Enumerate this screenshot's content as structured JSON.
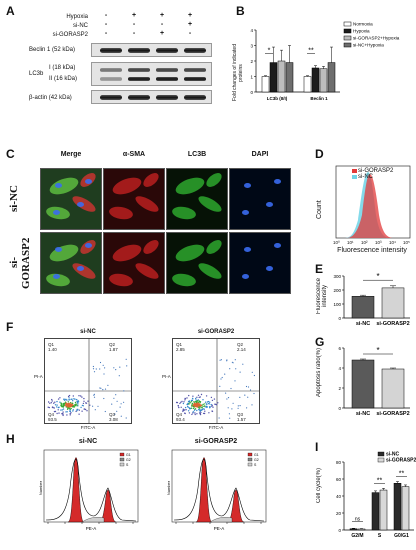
{
  "panels": {
    "A": "A",
    "B": "B",
    "C": "C",
    "D": "D",
    "E": "E",
    "F": "F",
    "G": "G",
    "H": "H",
    "I": "I"
  },
  "panelA": {
    "row_labels": [
      "Hypoxia",
      "si-NC",
      "si-GORASP2"
    ],
    "signs": [
      [
        "-",
        "+",
        "+",
        "+"
      ],
      [
        "-",
        "-",
        "-",
        "+"
      ],
      [
        "-",
        "-",
        "+",
        "-"
      ]
    ],
    "blots": [
      "Beclin 1 (52 kDa)",
      "LC3b",
      "I (18 kDa)",
      "II (16 kDa)",
      "β-actin (42 kDa)"
    ]
  },
  "panelB": {
    "ylabel": "Fold changes of indicated proteins",
    "legend": [
      "Normoxia",
      "Hypoxia",
      "si-GORASP2+Hypoxia",
      "si-NC+Hypoxia"
    ],
    "colors": [
      "#ffffff",
      "#1c1c1c",
      "#bdbdbd",
      "#6e6e6e"
    ],
    "chart_data": {
      "type": "bar",
      "categories": [
        "LC3b (II/I)",
        "Beclin 1"
      ],
      "series": [
        {
          "name": "Normoxia",
          "values": [
            1.0,
            1.0
          ]
        },
        {
          "name": "Hypoxia",
          "values": [
            1.9,
            1.55
          ]
        },
        {
          "name": "si-GORASP2+Hypoxia",
          "values": [
            2.0,
            1.5
          ]
        },
        {
          "name": "si-NC+Hypoxia",
          "values": [
            1.9,
            1.9
          ]
        }
      ],
      "errors": [
        [
          0.05,
          0.05
        ],
        [
          1.0,
          0.15
        ],
        [
          0.7,
          0.15
        ],
        [
          1.1,
          1.0
        ]
      ],
      "ylim": [
        0,
        4
      ],
      "yticks": [
        "0",
        "1",
        "2",
        "3",
        "4"
      ],
      "sig": [
        "*",
        "**"
      ]
    }
  },
  "panelC": {
    "col_labels": [
      "Merge",
      "α-SMA",
      "LC3B",
      "DAPI"
    ],
    "col_colors": [
      "#2b6cc4",
      "#d22",
      "#2a2",
      "#2b6cc4"
    ],
    "row_labels": [
      "si-NC",
      "si-GORASP2"
    ]
  },
  "panelD": {
    "legend": [
      "si-GORASP2",
      "si-NC"
    ],
    "colors": [
      "#e23a3a",
      "#6fd3e6"
    ],
    "ylabel": "Count",
    "xlabel": "Fluorescence intensity",
    "xticks": [
      "10⁰",
      "10¹",
      "10²",
      "10³",
      "10⁴",
      "10⁵"
    ]
  },
  "panelE": {
    "ylabel": "Fluorescence intensity",
    "chart_data": {
      "type": "bar",
      "categories": [
        "si-NC",
        "si-GORASP2"
      ],
      "values": [
        155,
        215
      ],
      "errors": [
        8,
        15
      ],
      "ylim": [
        0,
        300
      ],
      "yticks": [
        "0",
        "100",
        "200",
        "300"
      ],
      "sig": "*"
    }
  },
  "panelF": {
    "plots": [
      {
        "title": "si-NC",
        "quadrants": [
          "Q1",
          "Q2",
          "Q4",
          "Q3"
        ],
        "values": [
          "1.40",
          "1.87",
          "93.5",
          "3.08"
        ]
      },
      {
        "title": "si-GORASP2",
        "quadrants": [
          "Q1",
          "Q2",
          "Q4",
          "Q3"
        ],
        "values": [
          "2.85",
          "2.14",
          "93.4",
          "1.57"
        ]
      }
    ],
    "xlabel": "FITC-A",
    "ylabel": "PI-A"
  },
  "panelG": {
    "ylabel": "Apoptosis ratio(%)",
    "chart_data": {
      "type": "bar",
      "categories": [
        "si-NC",
        "si-GORASP2"
      ],
      "values": [
        4.8,
        3.9
      ],
      "errors": [
        0.1,
        0.1
      ],
      "ylim": [
        0,
        6
      ],
      "yticks": [
        "0",
        "2",
        "4",
        "6"
      ],
      "sig": "*"
    }
  },
  "panelH": {
    "plots": [
      {
        "title": "si-NC"
      },
      {
        "title": "si-GORASP2"
      }
    ],
    "legend": [
      "G1",
      "G2",
      "S"
    ],
    "xlabel": "PE-A",
    "ylabel": "Number"
  },
  "panelI": {
    "ylabel": "Cell cycle(%)",
    "legend": [
      "si-NC",
      "si-GORASP2"
    ],
    "colors": [
      "#2a2a2a",
      "#d8d8d8"
    ],
    "chart_data": {
      "type": "bar",
      "categories": [
        "G2/M",
        "S",
        "G0/G1"
      ],
      "series": [
        {
          "name": "si-NC",
          "values": [
            1.5,
            44,
            55
          ]
        },
        {
          "name": "si-GORASP2",
          "values": [
            1.2,
            47,
            51
          ]
        }
      ],
      "errors": [
        [
          0.5,
          2,
          2
        ],
        [
          0.5,
          2,
          2
        ]
      ],
      "ylim": [
        0,
        80
      ],
      "yticks": [
        "0",
        "20",
        "40",
        "60",
        "80"
      ],
      "sig": [
        "ns",
        "**",
        "**"
      ]
    }
  }
}
